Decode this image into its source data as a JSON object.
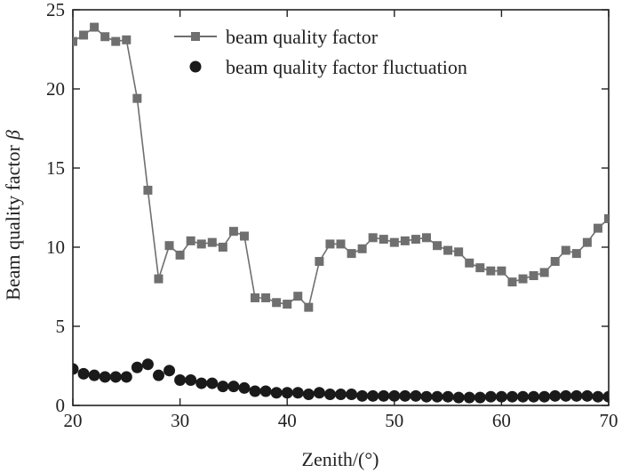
{
  "chart_data": {
    "type": "line",
    "xlabel": "Zenith/(°)",
    "ylabel": "Beam quality factor",
    "ylabel_symbol": "β",
    "xlim": [
      20,
      70
    ],
    "ylim": [
      0,
      25
    ],
    "xticks": [
      20,
      30,
      40,
      50,
      60,
      70
    ],
    "yticks": [
      0,
      5,
      10,
      15,
      20,
      25
    ],
    "grid": false,
    "legend_position": "top-right",
    "colors": {
      "series_1": "#6f6f6f",
      "series_2": "#1a1a1a",
      "axis": "#222222"
    },
    "series": [
      {
        "name": "beam quality factor",
        "marker": "square",
        "line": true,
        "x": [
          20,
          21,
          22,
          23,
          24,
          25,
          26,
          27,
          28,
          29,
          30,
          31,
          32,
          33,
          34,
          35,
          36,
          37,
          38,
          39,
          40,
          41,
          42,
          43,
          44,
          45,
          46,
          47,
          48,
          49,
          50,
          51,
          52,
          53,
          54,
          55,
          56,
          57,
          58,
          59,
          60,
          61,
          62,
          63,
          64,
          65,
          66,
          67,
          68,
          69,
          70
        ],
        "y": [
          23.0,
          23.4,
          23.9,
          23.3,
          23.0,
          23.1,
          19.4,
          13.6,
          8.0,
          10.1,
          9.5,
          10.4,
          10.2,
          10.3,
          10.0,
          11.0,
          10.7,
          6.8,
          6.8,
          6.5,
          6.4,
          6.9,
          6.2,
          9.1,
          10.2,
          10.2,
          9.6,
          9.9,
          10.6,
          10.5,
          10.3,
          10.4,
          10.5,
          10.6,
          10.1,
          9.8,
          9.7,
          9.0,
          8.7,
          8.5,
          8.5,
          7.8,
          8.0,
          8.2,
          8.4,
          9.1,
          9.8,
          9.6,
          10.3,
          11.2,
          11.8
        ]
      },
      {
        "name": "beam quality factor fluctuation",
        "marker": "circle",
        "line": false,
        "x": [
          20,
          21,
          22,
          23,
          24,
          25,
          26,
          27,
          28,
          29,
          30,
          31,
          32,
          33,
          34,
          35,
          36,
          37,
          38,
          39,
          40,
          41,
          42,
          43,
          44,
          45,
          46,
          47,
          48,
          49,
          50,
          51,
          52,
          53,
          54,
          55,
          56,
          57,
          58,
          59,
          60,
          61,
          62,
          63,
          64,
          65,
          66,
          67,
          68,
          69,
          70
        ],
        "y": [
          2.3,
          2.0,
          1.9,
          1.8,
          1.8,
          1.8,
          2.4,
          2.6,
          1.9,
          2.2,
          1.6,
          1.6,
          1.4,
          1.4,
          1.2,
          1.2,
          1.1,
          0.9,
          0.9,
          0.8,
          0.8,
          0.8,
          0.7,
          0.8,
          0.7,
          0.7,
          0.7,
          0.6,
          0.6,
          0.6,
          0.6,
          0.6,
          0.6,
          0.55,
          0.55,
          0.55,
          0.5,
          0.5,
          0.5,
          0.55,
          0.55,
          0.55,
          0.55,
          0.55,
          0.55,
          0.6,
          0.6,
          0.6,
          0.6,
          0.55,
          0.55
        ]
      }
    ]
  }
}
